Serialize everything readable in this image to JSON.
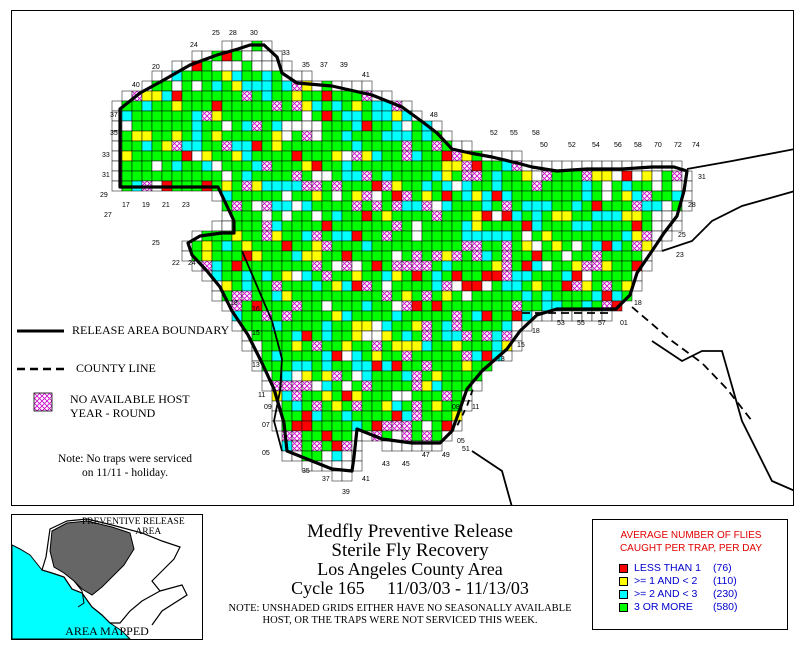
{
  "legend": {
    "boundary_label": "RELEASE AREA BOUNDARY",
    "county_line_label": "COUNTY LINE",
    "no_host_line1": "NO AVAILABLE HOST",
    "no_host_line2": "YEAR - ROUND"
  },
  "note": {
    "line1": "Note: No traps were serviced",
    "line2": "on 11/11 - holiday."
  },
  "inset": {
    "title_line1": "PREVENTIVE RELEASE",
    "title_line2": "AREA",
    "caption": "AREA MAPPED"
  },
  "title": {
    "line1": "Medfly Preventive Release",
    "line2": "Sterile Fly Recovery",
    "line3": "Los Angeles County Area",
    "line4": "Cycle 165     11/03/03 - 11/13/03"
  },
  "disclaimer": {
    "line1": "NOTE: UNSHADED GRIDS EITHER HAVE NO SEASONALLY AVAILABLE",
    "line2": "HOST, OR THE TRAPS WERE NOT SERVICED THIS WEEK."
  },
  "fly_legend": {
    "heading_line1": "AVERAGE NUMBER OF FLIES",
    "heading_line2": "CAUGHT PER TRAP, PER DAY",
    "categories": [
      {
        "label": "LESS THAN 1",
        "count": "(76)",
        "color": "#ff0000"
      },
      {
        "label": ">= 1 AND < 2",
        "count": "(110)",
        "color": "#ffff00"
      },
      {
        "label": ">= 2 AND < 3",
        "count": "(230)",
        "color": "#00ffff"
      },
      {
        "label": "3 OR MORE",
        "count": "(580)",
        "color": "#00ff00"
      }
    ]
  },
  "grid_labels": {
    "top": [
      "25",
      "28",
      "30",
      "24",
      "33",
      "35",
      "37",
      "39",
      "41",
      "20",
      "40",
      "48",
      "52",
      "55",
      "58",
      "50",
      "52",
      "54",
      "56",
      "58",
      "70",
      "72",
      "74"
    ],
    "left": [
      "37",
      "35",
      "33",
      "31",
      "29",
      "27",
      "25",
      "22",
      "24",
      "18",
      "16",
      "15",
      "13",
      "11",
      "09",
      "07",
      "05",
      "03"
    ],
    "bottom": [
      "17",
      "19",
      "21",
      "23",
      "35",
      "37",
      "39",
      "41",
      "43",
      "45",
      "47",
      "49",
      "51",
      "53",
      "55",
      "57",
      "01",
      "05",
      "08",
      "11",
      "13",
      "15",
      "18"
    ],
    "right": [
      "31",
      "28",
      "25",
      "23",
      "18"
    ]
  }
}
